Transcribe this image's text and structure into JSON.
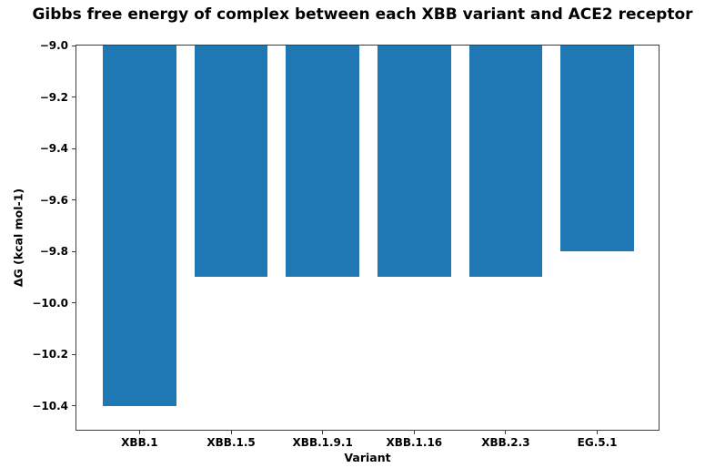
{
  "chart_data": {
    "type": "bar",
    "title": "Gibbs free energy of complex between each XBB variant and ACE2 receptor",
    "xlabel": "Variant",
    "ylabel": "ΔG (kcal mol-1)",
    "categories": [
      "XBB.1",
      "XBB.1.5",
      "XBB.1.9.1",
      "XBB.1.16",
      "XBB.2.3",
      "EG.5.1"
    ],
    "values": [
      -10.4,
      -9.9,
      -9.9,
      -9.9,
      -9.9,
      -9.8
    ],
    "bar_color": "#1f77b4",
    "bar_width": 0.8,
    "ylim_bottom": -10.5,
    "ylim_top": -9.0,
    "xlim_left": -0.69,
    "xlim_right": 5.69,
    "bars_anchored_at_top": true,
    "grid": false,
    "legend": null,
    "yticks": [
      {
        "value": -9.0,
        "label": "−9.0"
      },
      {
        "value": -9.2,
        "label": "−9.2"
      },
      {
        "value": -9.4,
        "label": "−9.4"
      },
      {
        "value": -9.6,
        "label": "−9.6"
      },
      {
        "value": -9.8,
        "label": "−9.8"
      },
      {
        "value": -10.0,
        "label": "−10.0"
      },
      {
        "value": -10.2,
        "label": "−10.2"
      },
      {
        "value": -10.4,
        "label": "−10.4"
      }
    ]
  }
}
